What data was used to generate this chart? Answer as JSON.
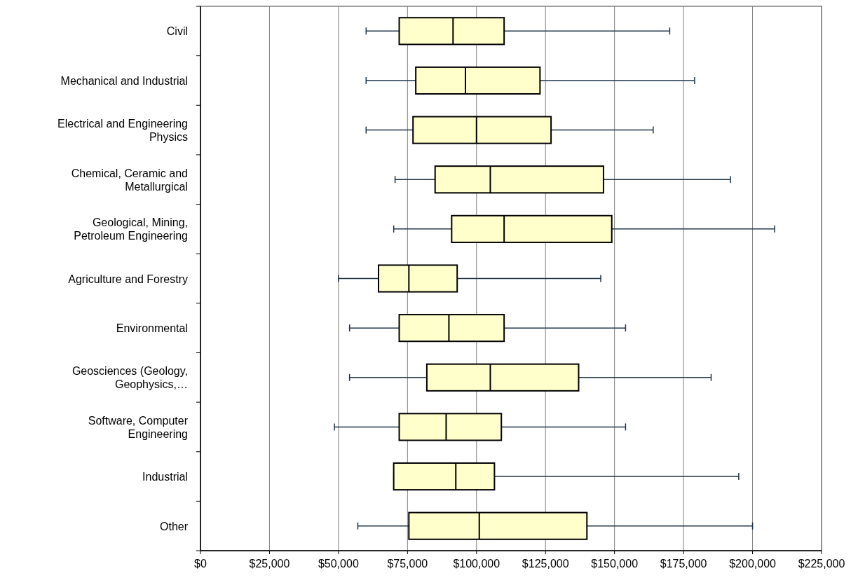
{
  "chart_data": {
    "type": "box",
    "orientation": "horizontal",
    "categories": [
      "Civil",
      "Mechanical and Industrial",
      "Electrical and Engineering Physics",
      "Chemical, Ceramic and Metallurgical",
      "Geological, Mining, Petroleum Engineering",
      "Agriculture and Forestry",
      "Environmental",
      "Geosciences (Geology, Geophysics,…",
      "Software, Computer Engineering",
      "Industrial",
      "Other"
    ],
    "color": "#ffffcc",
    "boxes": [
      {
        "low": 60000,
        "q1": 72000,
        "median": 91500,
        "q3": 110000,
        "high": 170000
      },
      {
        "low": 60000,
        "q1": 78000,
        "median": 96000,
        "q3": 123000,
        "high": 179000
      },
      {
        "low": 60000,
        "q1": 77000,
        "median": 100000,
        "q3": 127000,
        "high": 164000
      },
      {
        "low": 70500,
        "q1": 85000,
        "median": 105000,
        "q3": 146000,
        "high": 192000
      },
      {
        "low": 70000,
        "q1": 91000,
        "median": 110000,
        "q3": 149000,
        "high": 208000
      },
      {
        "low": 50000,
        "q1": 64500,
        "median": 75500,
        "q3": 93000,
        "high": 145000
      },
      {
        "low": 54000,
        "q1": 72000,
        "median": 90000,
        "q3": 110000,
        "high": 154000
      },
      {
        "low": 54000,
        "q1": 82000,
        "median": 105000,
        "q3": 137000,
        "high": 185000
      },
      {
        "low": 48500,
        "q1": 72000,
        "median": 89000,
        "q3": 109000,
        "high": 154000
      },
      {
        "low": 70000,
        "q1": 70000,
        "median": 92500,
        "q3": 106500,
        "high": 195000
      },
      {
        "low": 57000,
        "q1": 75500,
        "median": 101000,
        "q3": 140000,
        "high": 200000
      }
    ],
    "xlim": [
      0,
      225000
    ],
    "xticks": [
      {
        "value": 0,
        "label": "$0"
      },
      {
        "value": 25000,
        "label": "$25,000"
      },
      {
        "value": 50000,
        "label": "$50,000"
      },
      {
        "value": 75000,
        "label": "$75,000"
      },
      {
        "value": 100000,
        "label": "$100,000"
      },
      {
        "value": 125000,
        "label": "$125,000"
      },
      {
        "value": 150000,
        "label": "$150,000"
      },
      {
        "value": 175000,
        "label": "$175,000"
      },
      {
        "value": 200000,
        "label": "$200,000"
      },
      {
        "value": 225000,
        "label": "$225,000"
      }
    ],
    "grid": "x",
    "legend": false
  }
}
